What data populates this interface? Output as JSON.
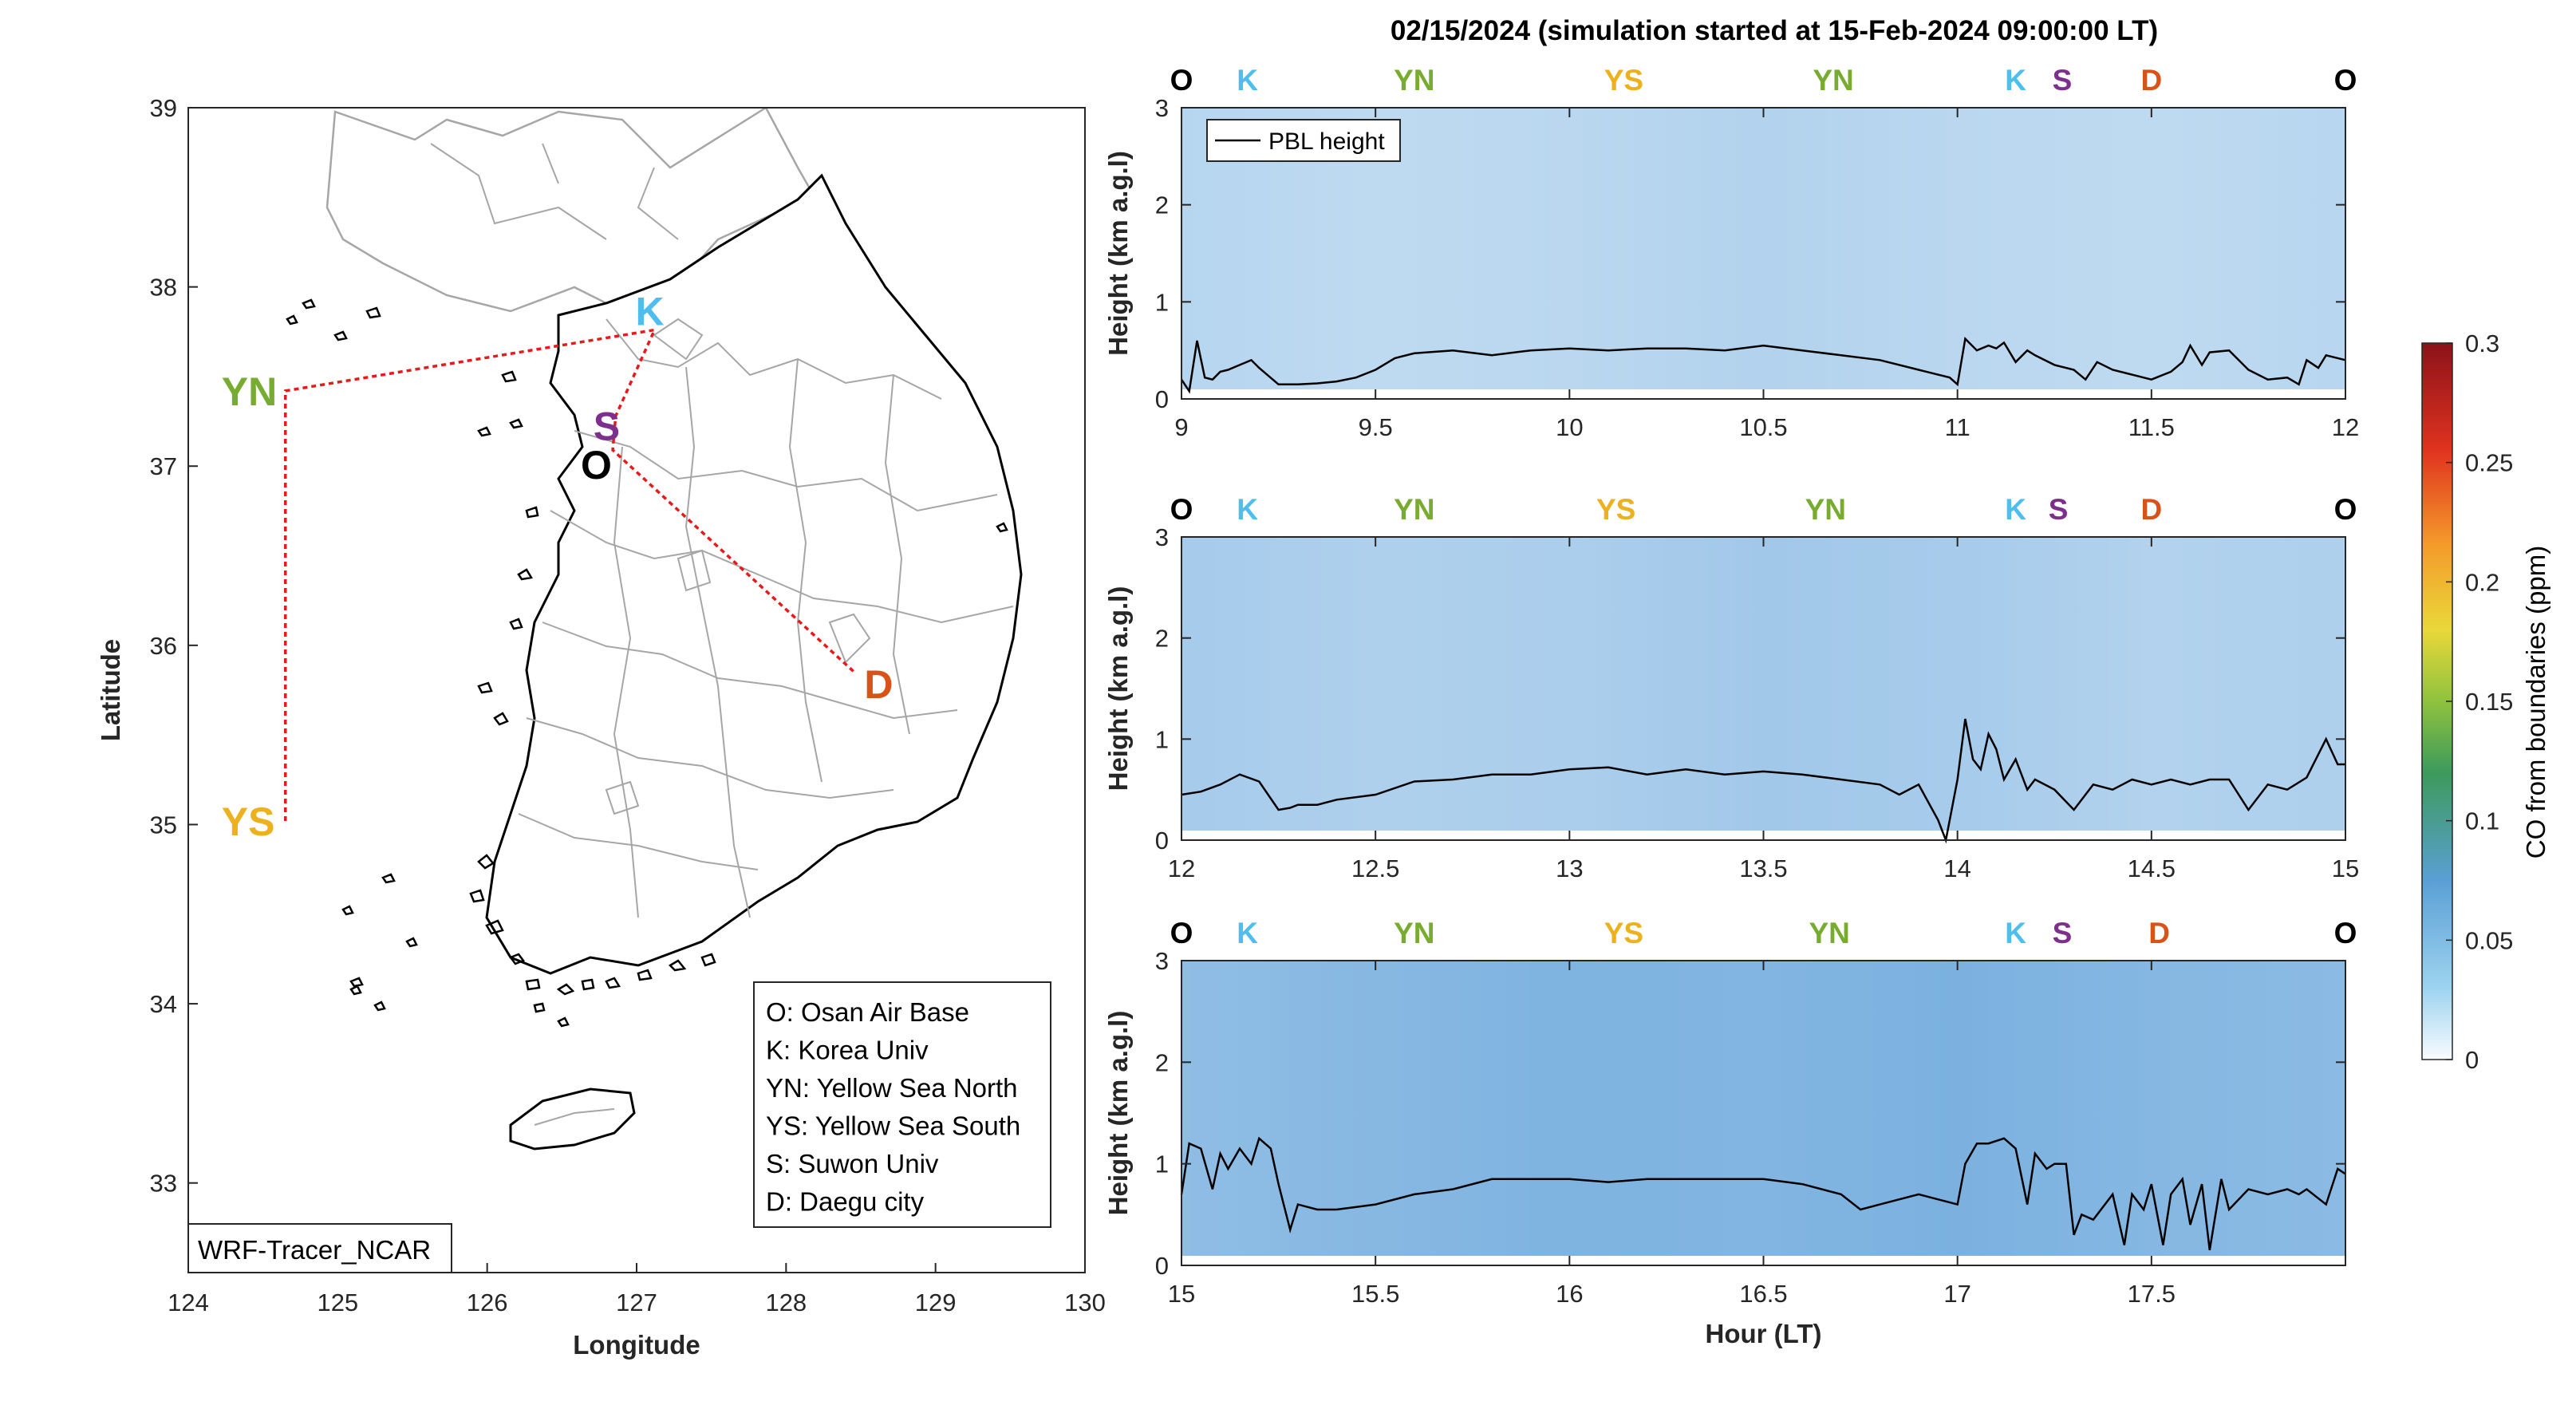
{
  "figure_title": "02/15/2024 (simulation started at 15-Feb-2024 09:00:00 LT)",
  "site_colors": {
    "O": "#000000",
    "K": "#4DBEEE",
    "S": "#7E2F8E",
    "YN": "#77AC30",
    "YS": "#EDB120",
    "D": "#D95319"
  },
  "map": {
    "xlabel": "Longitude",
    "ylabel": "Latitude",
    "xlim": [
      124,
      130
    ],
    "ylim": [
      32.5,
      39
    ],
    "xticks": [
      "124",
      "125",
      "126",
      "127",
      "128",
      "129",
      "130"
    ],
    "yticks": [
      "33",
      "34",
      "35",
      "36",
      "37",
      "38",
      "39"
    ],
    "sites": [
      {
        "label": "YN",
        "lon": 124.65,
        "lat": 37.42
      },
      {
        "label": "YS",
        "lon": 124.65,
        "lat": 35.02
      },
      {
        "label": "K",
        "lon": 127.12,
        "lat": 37.76
      },
      {
        "label": "S",
        "lon": 126.86,
        "lat": 37.28
      },
      {
        "label": "O",
        "lon": 126.84,
        "lat": 37.09
      },
      {
        "label": "D",
        "lon": 128.47,
        "lat": 35.84
      }
    ],
    "track_color": "#E8191B",
    "legend": [
      "O: Osan Air Base",
      "K: Korea Univ",
      "YN: Yellow Sea North",
      "YS: Yellow Sea South",
      "S: Suwon Univ",
      "D: Daegu city"
    ],
    "model_label": "WRF-Tracer_NCAR"
  },
  "colorbar": {
    "label": "CO from boundaries (ppm)",
    "ticks": [
      "0",
      "0.05",
      "0.1",
      "0.15",
      "0.2",
      "0.25",
      "0.3"
    ],
    "range": [
      0,
      0.3
    ]
  },
  "pbl_legend": "PBL height",
  "chart_data": [
    {
      "type": "line",
      "xlabel": "",
      "ylabel": "Height (km a.g.l)",
      "xlim": [
        9,
        12
      ],
      "ylim": [
        0,
        3
      ],
      "xticks": [
        "9",
        "9.5",
        "10",
        "10.5",
        "11",
        "11.5",
        "12"
      ],
      "yticks": [
        "0",
        "1",
        "2",
        "3"
      ],
      "site_markers": [
        {
          "label": "O",
          "x": 9.0
        },
        {
          "label": "K",
          "x": 9.17
        },
        {
          "label": "YN",
          "x": 9.6
        },
        {
          "label": "YS",
          "x": 10.14
        },
        {
          "label": "YN",
          "x": 10.68
        },
        {
          "label": "K",
          "x": 11.15
        },
        {
          "label": "S",
          "x": 11.27
        },
        {
          "label": "D",
          "x": 11.5
        },
        {
          "label": "O",
          "x": 12.0
        }
      ],
      "background_co_ppm": [
        0.035,
        0.03,
        0.033,
        0.038,
        0.033,
        0.03,
        0.034
      ],
      "series": [
        {
          "name": "PBL height",
          "x": [
            9.0,
            9.02,
            9.04,
            9.06,
            9.08,
            9.1,
            9.12,
            9.15,
            9.18,
            9.2,
            9.25,
            9.3,
            9.35,
            9.4,
            9.45,
            9.5,
            9.55,
            9.6,
            9.7,
            9.8,
            9.9,
            10.0,
            10.1,
            10.2,
            10.3,
            10.4,
            10.5,
            10.6,
            10.7,
            10.8,
            10.9,
            10.98,
            11.0,
            11.02,
            11.05,
            11.08,
            11.1,
            11.12,
            11.15,
            11.18,
            11.2,
            11.25,
            11.3,
            11.33,
            11.36,
            11.4,
            11.45,
            11.5,
            11.55,
            11.58,
            11.6,
            11.63,
            11.65,
            11.7,
            11.75,
            11.8,
            11.85,
            11.88,
            11.9,
            11.93,
            11.95,
            12.0
          ],
          "y": [
            0.2,
            0.08,
            0.6,
            0.22,
            0.2,
            0.28,
            0.3,
            0.35,
            0.4,
            0.32,
            0.15,
            0.15,
            0.16,
            0.18,
            0.22,
            0.3,
            0.42,
            0.47,
            0.5,
            0.45,
            0.5,
            0.52,
            0.5,
            0.52,
            0.52,
            0.5,
            0.55,
            0.5,
            0.45,
            0.4,
            0.3,
            0.22,
            0.15,
            0.62,
            0.5,
            0.55,
            0.52,
            0.58,
            0.38,
            0.5,
            0.45,
            0.35,
            0.3,
            0.2,
            0.38,
            0.3,
            0.25,
            0.2,
            0.28,
            0.38,
            0.55,
            0.35,
            0.48,
            0.5,
            0.3,
            0.2,
            0.22,
            0.15,
            0.4,
            0.32,
            0.45,
            0.4
          ]
        }
      ]
    },
    {
      "type": "line",
      "xlabel": "",
      "ylabel": "Height (km a.g.l)",
      "xlim": [
        12,
        15
      ],
      "ylim": [
        0,
        3
      ],
      "xticks": [
        "12",
        "12.5",
        "13",
        "13.5",
        "14",
        "14.5",
        "15"
      ],
      "yticks": [
        "0",
        "1",
        "2",
        "3"
      ],
      "site_markers": [
        {
          "label": "O",
          "x": 12.0
        },
        {
          "label": "K",
          "x": 12.17
        },
        {
          "label": "YN",
          "x": 12.6
        },
        {
          "label": "YS",
          "x": 13.12
        },
        {
          "label": "YN",
          "x": 13.66
        },
        {
          "label": "K",
          "x": 14.15
        },
        {
          "label": "S",
          "x": 14.26
        },
        {
          "label": "D",
          "x": 14.5
        },
        {
          "label": "O",
          "x": 15.0
        }
      ],
      "background_co_ppm": [
        0.045,
        0.04,
        0.042,
        0.048,
        0.045,
        0.038,
        0.04
      ],
      "series": [
        {
          "name": "PBL height",
          "x": [
            12.0,
            12.05,
            12.1,
            12.15,
            12.2,
            12.25,
            12.28,
            12.3,
            12.35,
            12.4,
            12.5,
            12.6,
            12.7,
            12.8,
            12.9,
            13.0,
            13.1,
            13.2,
            13.3,
            13.4,
            13.5,
            13.6,
            13.7,
            13.8,
            13.85,
            13.9,
            13.95,
            13.97,
            14.0,
            14.02,
            14.04,
            14.06,
            14.08,
            14.1,
            14.12,
            14.15,
            14.18,
            14.2,
            14.25,
            14.3,
            14.35,
            14.4,
            14.45,
            14.5,
            14.55,
            14.6,
            14.65,
            14.7,
            14.75,
            14.8,
            14.85,
            14.9,
            14.95,
            14.98,
            15.0
          ],
          "y": [
            0.45,
            0.48,
            0.55,
            0.65,
            0.58,
            0.3,
            0.32,
            0.35,
            0.35,
            0.4,
            0.45,
            0.58,
            0.6,
            0.65,
            0.65,
            0.7,
            0.72,
            0.65,
            0.7,
            0.65,
            0.68,
            0.65,
            0.6,
            0.55,
            0.45,
            0.55,
            0.2,
            0.0,
            0.6,
            1.2,
            0.8,
            0.7,
            1.05,
            0.9,
            0.6,
            0.8,
            0.5,
            0.6,
            0.5,
            0.3,
            0.55,
            0.5,
            0.6,
            0.55,
            0.6,
            0.55,
            0.6,
            0.6,
            0.3,
            0.55,
            0.5,
            0.62,
            1.0,
            0.75,
            0.75
          ]
        }
      ]
    },
    {
      "type": "line",
      "xlabel": "Hour (LT)",
      "ylabel": "Height (km a.g.l)",
      "xlim": [
        15,
        18
      ],
      "ylim": [
        0,
        3
      ],
      "xticks": [
        "15",
        "15.5",
        "16",
        "16.5",
        "17",
        "17.5"
      ],
      "yticks": [
        "0",
        "1",
        "2",
        "3"
      ],
      "site_markers": [
        {
          "label": "O",
          "x": 15.0
        },
        {
          "label": "K",
          "x": 15.17
        },
        {
          "label": "YN",
          "x": 15.6
        },
        {
          "label": "YS",
          "x": 16.14
        },
        {
          "label": "YN",
          "x": 16.67
        },
        {
          "label": "K",
          "x": 17.15
        },
        {
          "label": "S",
          "x": 17.27
        },
        {
          "label": "D",
          "x": 17.52
        },
        {
          "label": "O",
          "x": 18.0
        }
      ],
      "background_co_ppm": [
        0.06,
        0.065,
        0.07,
        0.068,
        0.072,
        0.066,
        0.062
      ],
      "series": [
        {
          "name": "PBL height",
          "x": [
            15.0,
            15.02,
            15.05,
            15.08,
            15.1,
            15.12,
            15.15,
            15.18,
            15.2,
            15.23,
            15.25,
            15.28,
            15.3,
            15.35,
            15.4,
            15.5,
            15.6,
            15.7,
            15.8,
            15.9,
            16.0,
            16.1,
            16.2,
            16.3,
            16.4,
            16.5,
            16.6,
            16.7,
            16.75,
            16.8,
            16.9,
            17.0,
            17.02,
            17.05,
            17.08,
            17.12,
            17.15,
            17.18,
            17.2,
            17.23,
            17.25,
            17.28,
            17.3,
            17.32,
            17.35,
            17.38,
            17.4,
            17.43,
            17.45,
            17.48,
            17.5,
            17.53,
            17.55,
            17.58,
            17.6,
            17.63,
            17.65,
            17.68,
            17.7,
            17.75,
            17.8,
            17.85,
            17.88,
            17.9,
            17.95,
            17.98,
            18.0
          ],
          "y": [
            0.7,
            1.2,
            1.15,
            0.75,
            1.1,
            0.95,
            1.15,
            1.0,
            1.25,
            1.15,
            0.8,
            0.35,
            0.6,
            0.55,
            0.55,
            0.6,
            0.7,
            0.75,
            0.85,
            0.85,
            0.85,
            0.82,
            0.85,
            0.85,
            0.85,
            0.85,
            0.8,
            0.7,
            0.55,
            0.6,
            0.7,
            0.6,
            1.0,
            1.2,
            1.2,
            1.25,
            1.15,
            0.6,
            1.1,
            0.95,
            1.0,
            1.0,
            0.3,
            0.5,
            0.45,
            0.6,
            0.7,
            0.2,
            0.7,
            0.55,
            0.8,
            0.2,
            0.7,
            0.85,
            0.4,
            0.8,
            0.15,
            0.85,
            0.55,
            0.75,
            0.7,
            0.75,
            0.7,
            0.75,
            0.6,
            0.95,
            0.9
          ]
        }
      ]
    }
  ]
}
